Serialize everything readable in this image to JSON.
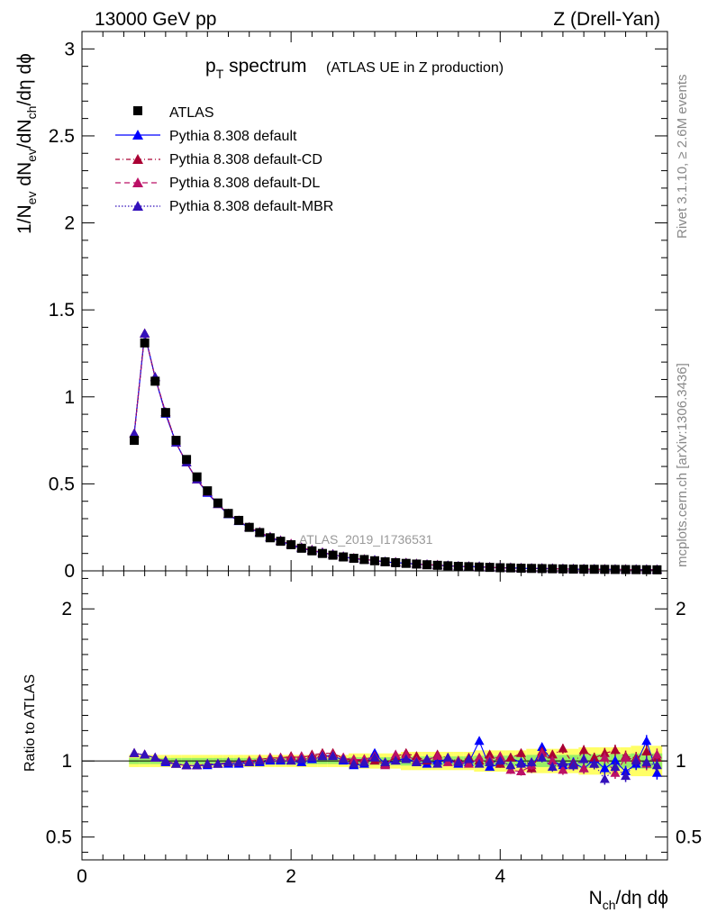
{
  "header": {
    "energy_label": "13000 GeV pp",
    "process_label": "Z (Drell-Yan)"
  },
  "side_labels": {
    "rivet": "Rivet 3.1.10, ≥ 2.6M events",
    "mcplots": "mcplots.cern.ch [arXiv:1306.3436]"
  },
  "colors": {
    "data": "#000000",
    "default": "#0000ff",
    "cd": "#aa0033",
    "dl": "#bb1166",
    "mbr": "#3311bb",
    "band_outer": "#ffff66",
    "band_inner": "#99ee66"
  },
  "chart_data": {
    "type": "line",
    "title_main": "p",
    "title_sub": "T",
    "title_rest": " spectrum",
    "title_extra": "(ATLAS UE in Z production)",
    "analysis_ref": "ATLAS_2019_I1736531",
    "xlabel_main": "N",
    "xlabel_sub": "ch",
    "xlabel_rest": "/dη dϕ",
    "ylabel_parts": {
      "a": "1/N",
      "a_sub": "ev",
      "b": " dN",
      "b_sub": "ev",
      "c": "/dN",
      "c_sub": "ch",
      "d": "/dη dϕ"
    },
    "ratio_ylabel": "Ratio to ATLAS",
    "xlim": [
      0,
      5.6
    ],
    "ylim": [
      0,
      3.1
    ],
    "ratio_ylim": [
      0.35,
      2.25
    ],
    "x_ticks": [
      "0",
      "2",
      "4"
    ],
    "y_ticks": [
      "0",
      "0.5",
      "1",
      "1.5",
      "2",
      "2.5",
      "3"
    ],
    "ratio_ticks": [
      "0.5",
      "1",
      "2"
    ],
    "legend": [
      "ATLAS",
      "Pythia 8.308 default",
      "Pythia 8.308 default-CD",
      "Pythia 8.308 default-DL",
      "Pythia 8.308 default-MBR"
    ],
    "x": [
      0.5,
      0.6,
      0.7,
      0.8,
      0.9,
      1.0,
      1.1,
      1.2,
      1.3,
      1.4,
      1.5,
      1.6,
      1.7,
      1.8,
      1.9,
      2.0,
      2.1,
      2.2,
      2.3,
      2.4,
      2.5,
      2.6,
      2.7,
      2.8,
      2.9,
      3.0,
      3.1,
      3.2,
      3.3,
      3.4,
      3.5,
      3.6,
      3.7,
      3.8,
      3.9,
      4.0,
      4.1,
      4.2,
      4.3,
      4.4,
      4.5,
      4.6,
      4.7,
      4.8,
      4.9,
      5.0,
      5.1,
      5.2,
      5.3,
      5.4,
      5.5
    ],
    "series": [
      {
        "name": "ATLAS",
        "values": [
          0.75,
          1.31,
          1.09,
          0.91,
          0.75,
          0.64,
          0.54,
          0.46,
          0.39,
          0.33,
          0.29,
          0.25,
          0.22,
          0.19,
          0.17,
          0.15,
          0.13,
          0.115,
          0.1,
          0.09,
          0.08,
          0.072,
          0.065,
          0.058,
          0.052,
          0.047,
          0.043,
          0.039,
          0.035,
          0.032,
          0.029,
          0.026,
          0.024,
          0.022,
          0.02,
          0.018,
          0.017,
          0.015,
          0.014,
          0.013,
          0.012,
          0.011,
          0.01,
          0.0095,
          0.009,
          0.0085,
          0.008,
          0.0075,
          0.007,
          0.0065,
          0.006
        ]
      },
      {
        "name": "Pythia 8.308 default",
        "ratio": [
          1.05,
          1.04,
          1.02,
          0.99,
          0.98,
          0.97,
          0.97,
          0.97,
          0.98,
          0.98,
          0.98,
          0.99,
          0.99,
          1.0,
          1.0,
          1.0,
          0.99,
          1.01,
          1.03,
          1.04,
          1.0,
          0.97,
          0.98,
          1.05,
          0.98,
          1.0,
          1.02,
          0.99,
          0.98,
          1.0,
          1.01,
          0.98,
          0.99,
          1.13,
          0.96,
          0.98,
          1.02,
          0.99,
          0.95,
          1.09,
          1.0,
          0.97,
          0.99,
          0.95,
          1.01,
          0.95,
          1.0,
          0.93,
          0.98,
          1.13,
          0.92
        ]
      },
      {
        "name": "Pythia 8.308 default-CD",
        "ratio": [
          1.05,
          1.04,
          1.02,
          1.0,
          0.98,
          0.97,
          0.97,
          0.98,
          0.98,
          0.99,
          0.99,
          1.0,
          1.01,
          1.02,
          1.02,
          1.03,
          1.02,
          1.04,
          1.05,
          1.05,
          1.02,
          1.0,
          1.01,
          1.0,
          0.98,
          1.03,
          1.05,
          1.03,
          1.0,
          1.04,
          1.02,
          1.0,
          1.02,
          1.0,
          1.04,
          0.98,
          1.02,
          1.05,
          0.95,
          1.06,
          1.04,
          1.08,
          0.98,
          1.07,
          1.02,
          1.05,
          1.07,
          1.03,
          1.02,
          1.06,
          1.02
        ]
      },
      {
        "name": "Pythia 8.308 default-DL",
        "ratio": [
          1.05,
          1.04,
          1.02,
          1.0,
          0.98,
          0.97,
          0.97,
          0.98,
          0.98,
          0.99,
          0.99,
          1.0,
          1.01,
          1.02,
          1.02,
          1.02,
          1.03,
          1.03,
          1.04,
          1.04,
          1.02,
          1.01,
          1.01,
          1.03,
          0.97,
          1.04,
          1.04,
          1.0,
          1.01,
          1.03,
          0.99,
          1.0,
          0.98,
          1.02,
          1.01,
          1.03,
          0.94,
          0.93,
          0.97,
          1.05,
          1.0,
          0.94,
          0.97,
          0.95,
          0.98,
          1.02,
          0.92,
          1.02,
          1.01,
          0.98,
          1.04
        ]
      },
      {
        "name": "Pythia 8.308 default-MBR",
        "ratio": [
          1.05,
          1.04,
          1.02,
          1.0,
          0.98,
          0.97,
          0.97,
          0.98,
          0.98,
          0.99,
          0.99,
          0.99,
          1.0,
          1.01,
          1.01,
          1.0,
          1.01,
          1.02,
          1.03,
          1.03,
          1.01,
          0.98,
          0.99,
          1.02,
          0.99,
          1.0,
          1.01,
          0.99,
          1.01,
          0.98,
          1.02,
          0.99,
          1.01,
          0.98,
          0.99,
          1.0,
          0.97,
          0.98,
          0.99,
          1.02,
          0.96,
          0.99,
          0.97,
          1.01,
          0.98,
          0.88,
          0.96,
          0.9,
          1.0,
          0.99,
          0.97
        ]
      }
    ],
    "ratio_band_halfwidth": [
      0.02,
      0.02,
      0.02,
      0.02,
      0.02,
      0.02,
      0.02,
      0.02,
      0.02,
      0.02,
      0.02,
      0.02,
      0.02,
      0.02,
      0.02,
      0.02,
      0.02,
      0.02,
      0.02,
      0.02,
      0.02,
      0.025,
      0.025,
      0.025,
      0.025,
      0.025,
      0.03,
      0.03,
      0.03,
      0.03,
      0.03,
      0.03,
      0.03,
      0.035,
      0.035,
      0.035,
      0.035,
      0.035,
      0.04,
      0.04,
      0.04,
      0.04,
      0.04,
      0.045,
      0.045,
      0.045,
      0.045,
      0.045,
      0.05,
      0.05,
      0.05
    ]
  }
}
